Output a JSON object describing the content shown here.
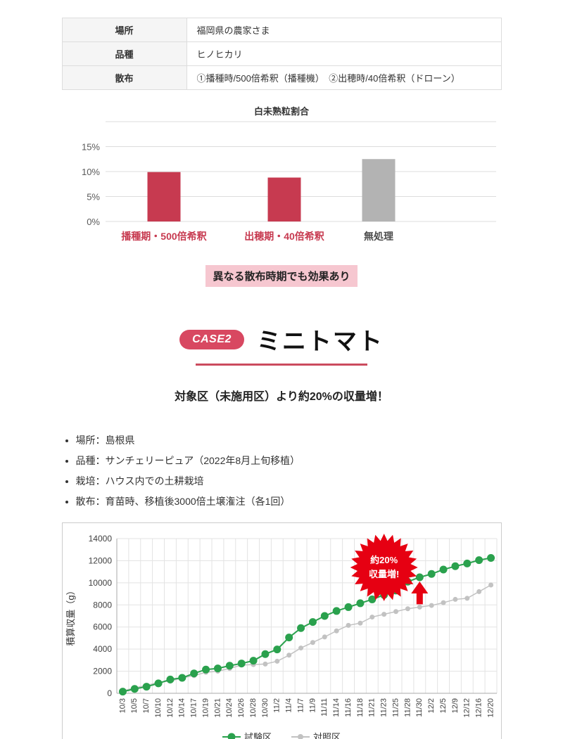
{
  "info_table": {
    "rows": [
      {
        "label": "場所",
        "value": "福岡県の農家さま"
      },
      {
        "label": "品種",
        "value": "ヒノヒカリ"
      },
      {
        "label": "散布",
        "value": "①播種時/500倍希釈（播種機）　②出穂時/40倍希釈（ドローン）"
      }
    ]
  },
  "highlight": {
    "text": "異なる散布時期でも効果あり",
    "bg": "#f6c7d0"
  },
  "case2": {
    "badge": "CASE2",
    "title": "ミニトマト",
    "subtitle": "対象区（未施用区）より約20%の収量増！",
    "badge_color": "#d84861",
    "divider_color": "#cb4b5e"
  },
  "bullets": [
    "場所：島根県",
    "品種：サンチェリーピュア（2022年8月上旬移植）",
    "栽培：ハウス内での土耕栽培",
    "散布：育苗時、移植後3000倍土壌潅注（各1回）"
  ],
  "chart_data": [
    {
      "type": "bar",
      "title": "白未熟粒割合",
      "categories": [
        "播種期・500倍希釈",
        "出穂期・40倍希釈",
        "無処理"
      ],
      "values": [
        9.9,
        8.8,
        12.5
      ],
      "bar_colors": [
        "#c73a50",
        "#c73a50",
        "#b3b3b3"
      ],
      "label_colors": [
        "#c73a50",
        "#c73a50",
        "#4d4d4d"
      ],
      "yticks": [
        0,
        5,
        10,
        15
      ],
      "ylim": [
        0,
        20
      ],
      "unit": "%",
      "grid": true,
      "xlabel": "",
      "ylabel": ""
    },
    {
      "type": "line",
      "title": "",
      "xlabel": "",
      "ylabel": "積算収量（g）",
      "categories": [
        "10/3",
        "10/5",
        "10/7",
        "10/10",
        "10/12",
        "10/14",
        "10/17",
        "10/19",
        "10/21",
        "10/24",
        "10/26",
        "10/28",
        "10/30",
        "11/2",
        "11/4",
        "11/7",
        "11/9",
        "11/11",
        "11/14",
        "11/16",
        "11/18",
        "11/21",
        "11/23",
        "11/25",
        "11/28",
        "11/30",
        "12/2",
        "12/5",
        "12/9",
        "12/12",
        "12/16",
        "12/20"
      ],
      "series": [
        {
          "name": "試験区",
          "color": "#2aa14d",
          "marker_r": 5.5,
          "line_w": 2,
          "values": [
            150,
            400,
            600,
            900,
            1250,
            1400,
            1800,
            2150,
            2250,
            2500,
            2700,
            2950,
            3550,
            3970,
            5050,
            5900,
            6450,
            7000,
            7450,
            7800,
            8150,
            8500,
            8900,
            9300,
            10100,
            10500,
            10800,
            11200,
            11500,
            11750,
            12050,
            12250
          ]
        },
        {
          "name": "対照区",
          "color": "#c2c2c2",
          "marker_r": 3.5,
          "line_w": 1.5,
          "values": [
            200,
            500,
            700,
            1000,
            1100,
            1400,
            1600,
            1900,
            2000,
            2250,
            2550,
            2600,
            2650,
            2900,
            3450,
            4100,
            4600,
            5100,
            5650,
            6150,
            6350,
            6900,
            7150,
            7400,
            7650,
            7800,
            7950,
            8200,
            8500,
            8600,
            9200,
            9800
          ]
        }
      ],
      "yticks": [
        0,
        2000,
        4000,
        6000,
        8000,
        10000,
        12000,
        14000
      ],
      "ylim": [
        0,
        14000
      ],
      "grid": true,
      "legend_position": "bottom",
      "annotation": {
        "line1": "約20%",
        "line2": "収量増!",
        "color": "#e60012",
        "center_at": "11/23",
        "arrow_at": "11/30"
      }
    }
  ]
}
